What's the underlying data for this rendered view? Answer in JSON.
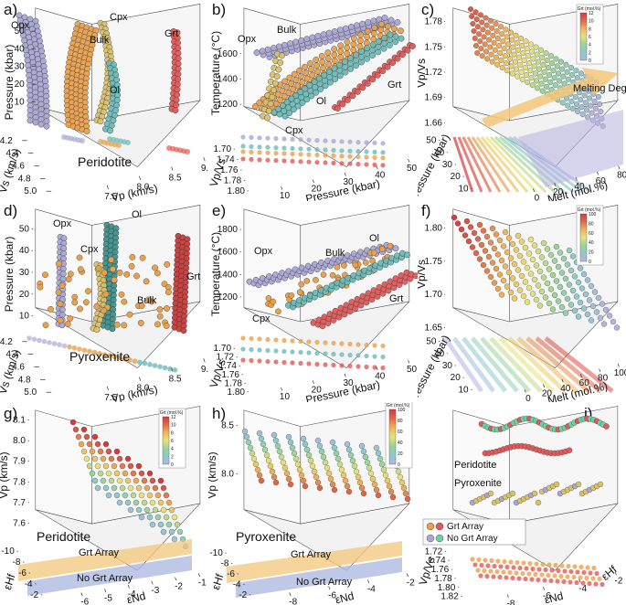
{
  "chart_data": [
    {
      "id": "a",
      "type": "scatter",
      "dims": 3,
      "label": "a)",
      "rock": "Peridotite",
      "xlabel": "Vp (km/s)",
      "ylabel": "Vs (km/s)",
      "zlabel": "Pressure (kbar)",
      "xticks": [
        "7.5",
        "8.0",
        "8.5",
        "9.0"
      ],
      "yticks": [
        "4.2",
        "4.4",
        "4.6",
        "4.8",
        "5.0"
      ],
      "zticks": [
        "10",
        "20",
        "30",
        "40",
        "50"
      ],
      "series": [
        {
          "name": "Opx",
          "color": "#a9a6d4"
        },
        {
          "name": "Cpx",
          "color": "#d8c06a"
        },
        {
          "name": "Bulk",
          "color": "#e8a04c"
        },
        {
          "name": "Ol",
          "color": "#6bbab8"
        },
        {
          "name": "Grt",
          "color": "#e05a58"
        }
      ]
    },
    {
      "id": "b",
      "type": "scatter",
      "dims": 3,
      "label": "b)",
      "xlabel": "Pressure (kbar)",
      "ylabel": "Vp/Vs",
      "zlabel": "Temperature (°C)",
      "xticks": [
        "10",
        "20",
        "30",
        "40",
        "50"
      ],
      "yticks": [
        "1.70",
        "1.74",
        "1.76",
        "1.78",
        "1.80"
      ],
      "zticks": [
        "1200",
        "1400",
        "1600"
      ],
      "series": [
        {
          "name": "Opx",
          "color": "#a9a6d4"
        },
        {
          "name": "Bulk",
          "color": "#e8a04c"
        },
        {
          "name": "Ol",
          "color": "#6bbab8"
        },
        {
          "name": "Cpx",
          "color": "#d8c06a"
        },
        {
          "name": "Grt",
          "color": "#e05a58"
        }
      ]
    },
    {
      "id": "c",
      "type": "scatter",
      "dims": 3,
      "label": "c)",
      "xlabel": "Melt (mol.%)",
      "ylabel": "Pressure (kbar)",
      "zlabel": "Vp/Vs",
      "xticks": [
        "0",
        "20",
        "40",
        "60",
        "80"
      ],
      "yticks": [
        "10",
        "20",
        "30",
        "40",
        "50"
      ],
      "zticks": [
        "1.66",
        "1.69",
        "1.72",
        "1.75",
        "1.78"
      ],
      "annotation": "Melting Degree",
      "colorbar": {
        "title": "Grt (mol.%)",
        "ticks": [
          "12",
          "10",
          "8",
          "6",
          "4",
          "2",
          "0"
        ]
      }
    },
    {
      "id": "d",
      "type": "scatter",
      "dims": 3,
      "label": "d)",
      "rock": "Pyroxenite",
      "xlabel": "Vp (km/s)",
      "ylabel": "Vs (km/s)",
      "zlabel": "Pressure (kbar)",
      "xticks": [
        "7.5",
        "8.0",
        "8.5",
        "9.0"
      ],
      "yticks": [
        "4.2",
        "4.4",
        "4.6",
        "4.8",
        "5.0"
      ],
      "zticks": [
        "10",
        "20",
        "30",
        "40",
        "50"
      ],
      "series": [
        {
          "name": "Opx",
          "color": "#a9a6d4"
        },
        {
          "name": "Ol",
          "color": "#3f8f8b"
        },
        {
          "name": "Cpx",
          "color": "#d8c06a"
        },
        {
          "name": "Bulk",
          "color": "#e8a04c"
        },
        {
          "name": "Grt",
          "color": "#c63a38"
        }
      ]
    },
    {
      "id": "e",
      "type": "scatter",
      "dims": 3,
      "label": "e)",
      "xlabel": "Pressure (kbar)",
      "ylabel": "Vp/Vs",
      "zlabel": "Temperature (°C)",
      "xticks": [
        "10",
        "20",
        "30",
        "40",
        "50"
      ],
      "yticks": [
        "1.70",
        "1.72",
        "1.74",
        "1.76",
        "1.78",
        "1.80"
      ],
      "zticks": [
        "1200",
        "1400",
        "1600",
        "1800"
      ],
      "series": [
        {
          "name": "Opx",
          "color": "#a9a6d4"
        },
        {
          "name": "Bulk",
          "color": "#e8a04c"
        },
        {
          "name": "Ol",
          "color": "#6bbab8"
        },
        {
          "name": "Cpx",
          "color": "#d8c06a"
        },
        {
          "name": "Grt",
          "color": "#e05a58"
        }
      ]
    },
    {
      "id": "f",
      "type": "scatter",
      "dims": 3,
      "label": "f)",
      "xlabel": "Melt (mol.%)",
      "ylabel": "Pressure (kbar)",
      "zlabel": "Vp/Vs",
      "xticks": [
        "0",
        "20",
        "40",
        "60",
        "80",
        "100"
      ],
      "yticks": [
        "10",
        "20",
        "30",
        "40",
        "50"
      ],
      "zticks": [
        "1.65",
        "1.70",
        "1.75",
        "1.80"
      ],
      "colorbar": {
        "title": "Grt (mol.%)",
        "ticks": [
          "100",
          "80",
          "60",
          "40",
          "20",
          "0"
        ]
      }
    },
    {
      "id": "g",
      "type": "scatter",
      "dims": 3,
      "label": "g)",
      "rock": "Peridotite",
      "xlabel": "εNd",
      "ylabel": "εHf",
      "zlabel": "Vp (km/s)",
      "xticks": [
        "-6",
        "-5",
        "-4",
        "-3",
        "-2",
        "-1"
      ],
      "yticks": [
        "-10",
        "-8",
        "-6",
        "-4",
        "-2"
      ],
      "zticks": [
        "7.6",
        "7.7",
        "7.8",
        "7.9",
        "8.0",
        "8.1"
      ],
      "arrays": [
        "Grt Array",
        "No Grt Array"
      ],
      "colorbar": {
        "title": "Grt (mol.%)",
        "ticks": [
          "12",
          "10",
          "8",
          "6",
          "4",
          "2",
          "0"
        ]
      }
    },
    {
      "id": "h",
      "type": "scatter",
      "dims": 3,
      "label": "h)",
      "rock": "Pyroxenite",
      "xlabel": "εNd",
      "ylabel": "εHf",
      "zlabel": "Vp (km/s)",
      "xticks": [
        "-8",
        "-6",
        "-4",
        "-2"
      ],
      "yticks": [
        "-10",
        "-8",
        "-6",
        "-4",
        "-2"
      ],
      "zticks": [
        "8.0",
        "8.5"
      ],
      "arrays": [
        "Grt Array",
        "No Grt Array"
      ],
      "colorbar": {
        "title": "Grt (mol.%)",
        "ticks": [
          "100",
          "80",
          "60",
          "40",
          "20",
          "0"
        ]
      }
    },
    {
      "id": "i",
      "type": "scatter",
      "dims": 3,
      "label": "i)",
      "xlabel": "εNd",
      "ylabel": "Vp/Vs",
      "zlabel": "εHf",
      "xticks": [
        "-8",
        "-6",
        "-4",
        "-2"
      ],
      "yticks": [
        "1.72",
        "1.74",
        "1.76",
        "1.78",
        "1.80",
        "1.82"
      ],
      "zticks": [],
      "annotations": [
        "Peridotite",
        "Pyroxenite"
      ],
      "legend": [
        "Grt Array",
        "No Grt Array"
      ]
    }
  ]
}
